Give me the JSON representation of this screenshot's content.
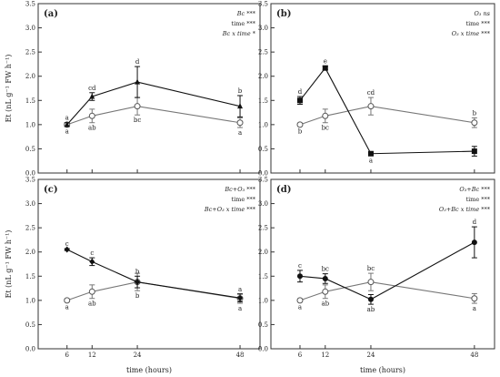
{
  "y_axis_label": "Et (nL g⁻¹ FW h⁻¹)",
  "x_axis_label": "time (hours)",
  "chart_data": [
    {
      "type": "line",
      "panel_label": "(a)",
      "x": [
        6,
        12,
        24,
        48
      ],
      "ylim": [
        0,
        3.5
      ],
      "y_ticks": [
        0,
        0.5,
        1.0,
        1.5,
        2.0,
        2.5,
        3.0,
        3.5
      ],
      "series": [
        {
          "marker": "triangle-filled",
          "color": "#111111",
          "values": [
            1.0,
            1.58,
            1.88,
            1.38
          ],
          "errors": [
            0.04,
            0.08,
            0.32,
            0.22
          ],
          "letters": [
            "a",
            "cd",
            "d",
            "b"
          ],
          "letter_pos": [
            "above",
            "above",
            "above",
            "above"
          ]
        },
        {
          "marker": "circle-open",
          "color": "#777777",
          "values": [
            1.0,
            1.18,
            1.38,
            1.04
          ],
          "errors": [
            0.03,
            0.14,
            0.18,
            0.1
          ],
          "letters": [
            "a",
            "ab",
            "bc",
            "a"
          ],
          "letter_pos": [
            "below",
            "below",
            "below",
            "below"
          ]
        }
      ],
      "annotations": [
        "Bc ***",
        "time ***",
        "Bc x time *"
      ]
    },
    {
      "type": "line",
      "panel_label": "(b)",
      "x": [
        6,
        12,
        24,
        48
      ],
      "ylim": [
        0,
        3.5
      ],
      "y_ticks": [
        0,
        0.5,
        1.0,
        1.5,
        2.0,
        2.5,
        3.0,
        3.5
      ],
      "series": [
        {
          "marker": "square-filled",
          "color": "#111111",
          "values": [
            1.5,
            2.17,
            0.4,
            0.45
          ],
          "errors": [
            0.08,
            0.04,
            0.03,
            0.1
          ],
          "letters": [
            "d",
            "e",
            "a",
            ""
          ],
          "letter_pos": [
            "above",
            "above",
            "below",
            "below"
          ]
        },
        {
          "marker": "circle-open",
          "color": "#777777",
          "values": [
            1.0,
            1.18,
            1.38,
            1.04
          ],
          "errors": [
            0.03,
            0.14,
            0.18,
            0.1
          ],
          "letters": [
            "b",
            "bc",
            "cd",
            "b"
          ],
          "letter_pos": [
            "below",
            "below",
            "above",
            "above"
          ]
        }
      ],
      "annotations": [
        "O₃ ns",
        "time ***",
        "O₃ x time ***"
      ]
    },
    {
      "type": "line",
      "panel_label": "(c)",
      "x": [
        6,
        12,
        24,
        48
      ],
      "ylim": [
        0,
        3.5
      ],
      "y_ticks": [
        0,
        0.5,
        1.0,
        1.5,
        2.0,
        2.5,
        3.0,
        3.5
      ],
      "series": [
        {
          "marker": "diamond-filled",
          "color": "#111111",
          "values": [
            2.05,
            1.8,
            1.38,
            1.05
          ],
          "errors": [
            0.02,
            0.08,
            0.12,
            0.08
          ],
          "letters": [
            "c",
            "c",
            "b",
            "a"
          ],
          "letter_pos": [
            "above",
            "above",
            "above",
            "above"
          ]
        },
        {
          "marker": "circle-open",
          "color": "#777777",
          "values": [
            1.0,
            1.18,
            1.38,
            1.04
          ],
          "errors": [
            0.03,
            0.14,
            0.18,
            0.1
          ],
          "letters": [
            "a",
            "ab",
            "b",
            "a"
          ],
          "letter_pos": [
            "below",
            "below",
            "below",
            "below"
          ]
        }
      ],
      "annotations": [
        "Bc+O₃ ***",
        "time ***",
        "Bc+O₃ x time ***"
      ]
    },
    {
      "type": "line",
      "panel_label": "(d)",
      "x": [
        6,
        12,
        24,
        48
      ],
      "ylim": [
        0,
        3.5
      ],
      "y_ticks": [
        0,
        0.5,
        1.0,
        1.5,
        2.0,
        2.5,
        3.0,
        3.5
      ],
      "series": [
        {
          "marker": "circle-filled",
          "color": "#111111",
          "values": [
            1.5,
            1.45,
            1.02,
            2.2
          ],
          "errors": [
            0.12,
            0.1,
            0.1,
            0.32
          ],
          "letters": [
            "c",
            "bc",
            "ab",
            "d"
          ],
          "letter_pos": [
            "above",
            "above",
            "below",
            "above"
          ]
        },
        {
          "marker": "circle-open",
          "color": "#777777",
          "values": [
            1.0,
            1.18,
            1.38,
            1.04
          ],
          "errors": [
            0.03,
            0.14,
            0.18,
            0.1
          ],
          "letters": [
            "a",
            "ab",
            "bc",
            "a"
          ],
          "letter_pos": [
            "below",
            "below",
            "above",
            "below"
          ]
        }
      ],
      "annotations": [
        "O₃+Bc ***",
        "time ***",
        "O₃+Bc x time ***"
      ]
    }
  ]
}
